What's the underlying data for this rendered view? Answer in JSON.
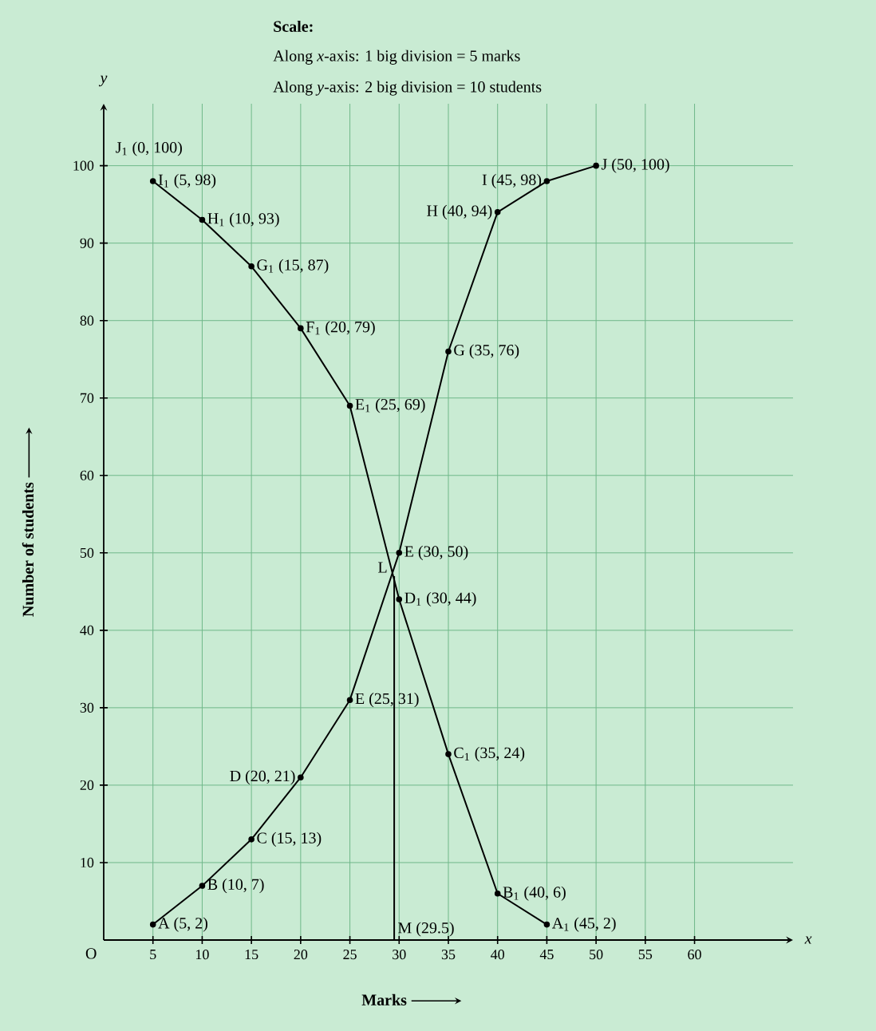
{
  "chart_data": {
    "type": "line",
    "xlabel": "Marks",
    "ylabel": "Number of students",
    "xlim": [
      0,
      70
    ],
    "ylim": [
      0,
      108
    ],
    "xticks": [
      5,
      10,
      15,
      20,
      25,
      30,
      35,
      40,
      45,
      50,
      55,
      60
    ],
    "yticks": [
      10,
      20,
      30,
      40,
      50,
      60,
      70,
      80,
      90,
      100
    ],
    "grid": true,
    "marker": "circle",
    "series": [
      {
        "color": "#000000",
        "x": [
          5,
          10,
          15,
          20,
          25,
          30,
          35,
          40,
          45,
          50
        ],
        "values": [
          2,
          7,
          13,
          21,
          31,
          50,
          76,
          94,
          98,
          100
        ],
        "value_labels": [
          "A (5, 2)",
          "B (10, 7)",
          "C (15, 13)",
          "D (20, 21)",
          "E (25, 31)",
          "E (30, 50)",
          "G (35, 76)",
          "H (40, 94)",
          "I (45, 98)",
          "J (50, 100)"
        ]
      },
      {
        "color": "#000000",
        "x": [
          5,
          10,
          15,
          20,
          25,
          30,
          35,
          40,
          45
        ],
        "values": [
          98,
          93,
          87,
          79,
          69,
          44,
          24,
          6,
          2
        ],
        "value_labels": [
          "I$_{1}$ (5, 98)",
          "H$_{1}$ (10, 93)",
          "G$_{1}$ (15, 87)",
          "F$_{1}$ (20, 79)",
          "E$_{1}$ (25, 69)",
          "D$_{1}$ (30, 44)",
          "C$_{1}$ (35, 24)",
          "B$_{1}$ (40, 6)",
          "A$_{1}$ (45, 2)"
        ]
      }
    ],
    "ref_lines": [
      {
        "axis": "x",
        "value": 29.5,
        "label": "M (29.5)"
      }
    ],
    "annotations": [
      "Scale:",
      "Along *x*-axis: 1 big division = 5 marks",
      "Along *y*-axis: 2 big division = 10 students",
      "J$_{1}$ (0, 100)",
      {
        "text": "L",
        "x": 29.5,
        "y": 47
      },
      "O",
      "x",
      "y"
    ]
  }
}
